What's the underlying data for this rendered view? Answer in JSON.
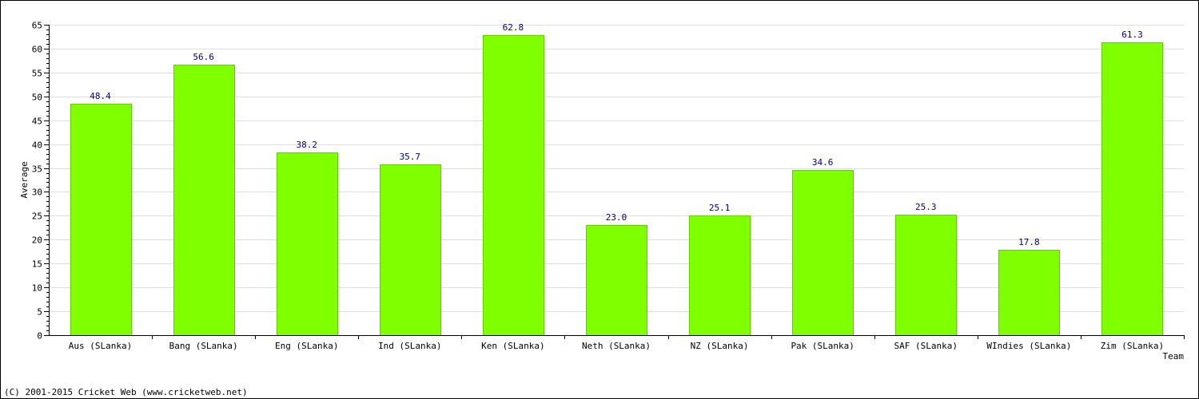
{
  "chart_data": {
    "type": "bar",
    "categories": [
      "Aus (SLanka)",
      "Bang (SLanka)",
      "Eng (SLanka)",
      "Ind (SLanka)",
      "Ken (SLanka)",
      "Neth (SLanka)",
      "NZ (SLanka)",
      "Pak (SLanka)",
      "SAF (SLanka)",
      "WIndies (SLanka)",
      "Zim (SLanka)"
    ],
    "values": [
      48.4,
      56.6,
      38.2,
      35.7,
      62.8,
      23.0,
      25.1,
      34.6,
      25.3,
      17.8,
      61.3
    ],
    "value_labels": [
      "48.4",
      "56.6",
      "38.2",
      "35.7",
      "62.8",
      "23.0",
      "25.1",
      "34.6",
      "25.3",
      "17.8",
      "61.3"
    ],
    "xlabel": "Team",
    "ylabel": "Average",
    "ylim": [
      0,
      65
    ],
    "y_ticks": [
      "0",
      "5",
      "10",
      "15",
      "20",
      "25",
      "30",
      "35",
      "40",
      "45",
      "50",
      "55",
      "60",
      "65"
    ],
    "grid": true,
    "bar_color": "#80ff00",
    "value_label_color": "#000080",
    "grid_color": "#dddddd"
  },
  "footer": {
    "copyright": "(C) 2001-2015 Cricket Web (www.cricketweb.net)"
  }
}
